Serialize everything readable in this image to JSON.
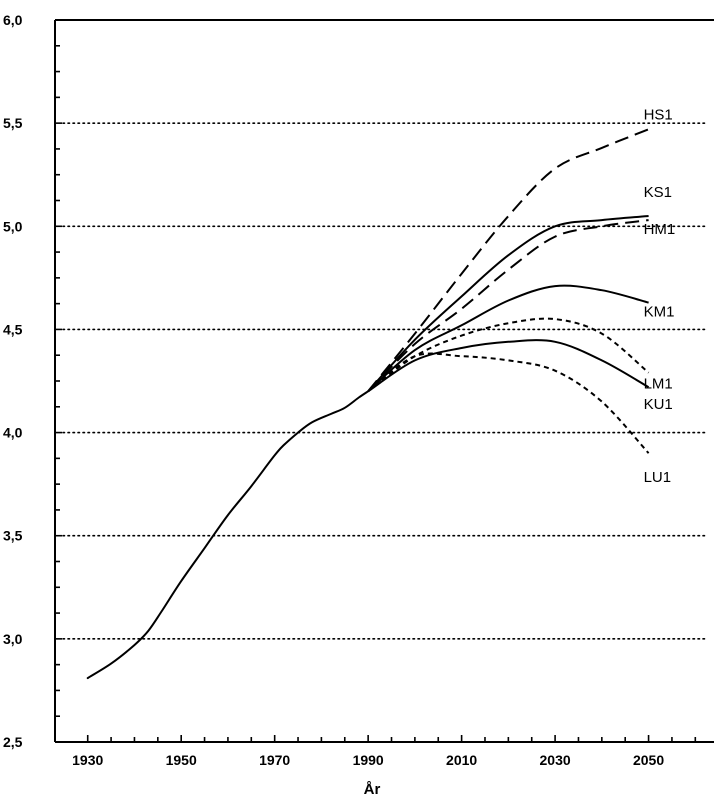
{
  "chart_data": {
    "type": "line",
    "xlabel": "År",
    "ylabel": "",
    "xlim": [
      1923,
      2064
    ],
    "ylim": [
      2.5,
      6.0
    ],
    "x_ticks": [
      1930,
      1950,
      1970,
      1990,
      2010,
      2030,
      2050
    ],
    "x_tick_labels": [
      "1930",
      "1950",
      "1970",
      "1990",
      "2010",
      "2030",
      "2050"
    ],
    "y_ticks": [
      2.5,
      3.0,
      3.5,
      4.0,
      4.5,
      5.0,
      5.5,
      6.0
    ],
    "y_tick_labels": [
      "2,5",
      "3,0",
      "3,5",
      "4,0",
      "4,5",
      "5,0",
      "5,5",
      "6,0"
    ],
    "grid": "dotted horizontal lines at 3,0, 3,5, 4,0, 4,5, 5,0, 5,5",
    "historical": {
      "style": "solid",
      "x": [
        1930,
        1935,
        1940,
        1943,
        1946,
        1950,
        1955,
        1960,
        1965,
        1970,
        1972,
        1975,
        1978,
        1982,
        1985,
        1988,
        1990
      ],
      "y": [
        2.81,
        2.88,
        2.97,
        3.04,
        3.14,
        3.28,
        3.44,
        3.6,
        3.74,
        3.89,
        3.94,
        4.0,
        4.05,
        4.09,
        4.12,
        4.17,
        4.2
      ]
    },
    "series": [
      {
        "name": "HS1",
        "style": "dashed",
        "x": [
          1990,
          2000,
          2010,
          2020,
          2030,
          2040,
          2050
        ],
        "y": [
          4.2,
          4.48,
          4.77,
          5.05,
          5.28,
          5.38,
          5.47
        ]
      },
      {
        "name": "KS1",
        "style": "solid",
        "x": [
          1990,
          2000,
          2010,
          2020,
          2030,
          2040,
          2050
        ],
        "y": [
          4.2,
          4.45,
          4.66,
          4.86,
          5.0,
          5.03,
          5.05
        ]
      },
      {
        "name": "HM1",
        "style": "dashed",
        "x": [
          1990,
          2000,
          2010,
          2020,
          2030,
          2040,
          2050
        ],
        "y": [
          4.2,
          4.43,
          4.6,
          4.79,
          4.95,
          5.0,
          5.03
        ]
      },
      {
        "name": "KM1",
        "style": "solid",
        "x": [
          1990,
          2000,
          2010,
          2020,
          2030,
          2040,
          2050
        ],
        "y": [
          4.2,
          4.4,
          4.52,
          4.64,
          4.71,
          4.69,
          4.63
        ]
      },
      {
        "name": "LM1",
        "style": "dotted",
        "x": [
          1990,
          2000,
          2010,
          2020,
          2030,
          2040,
          2050
        ],
        "y": [
          4.2,
          4.37,
          4.47,
          4.53,
          4.55,
          4.48,
          4.29
        ]
      },
      {
        "name": "KU1",
        "style": "solid",
        "x": [
          1990,
          2000,
          2010,
          2020,
          2030,
          2040,
          2050
        ],
        "y": [
          4.2,
          4.35,
          4.41,
          4.44,
          4.44,
          4.35,
          4.22
        ]
      },
      {
        "name": "LU1",
        "style": "dotted",
        "x": [
          1990,
          2000,
          2010,
          2020,
          2030,
          2040,
          2050
        ],
        "y": [
          4.2,
          4.37,
          4.37,
          4.35,
          4.3,
          4.15,
          3.9
        ]
      }
    ]
  }
}
